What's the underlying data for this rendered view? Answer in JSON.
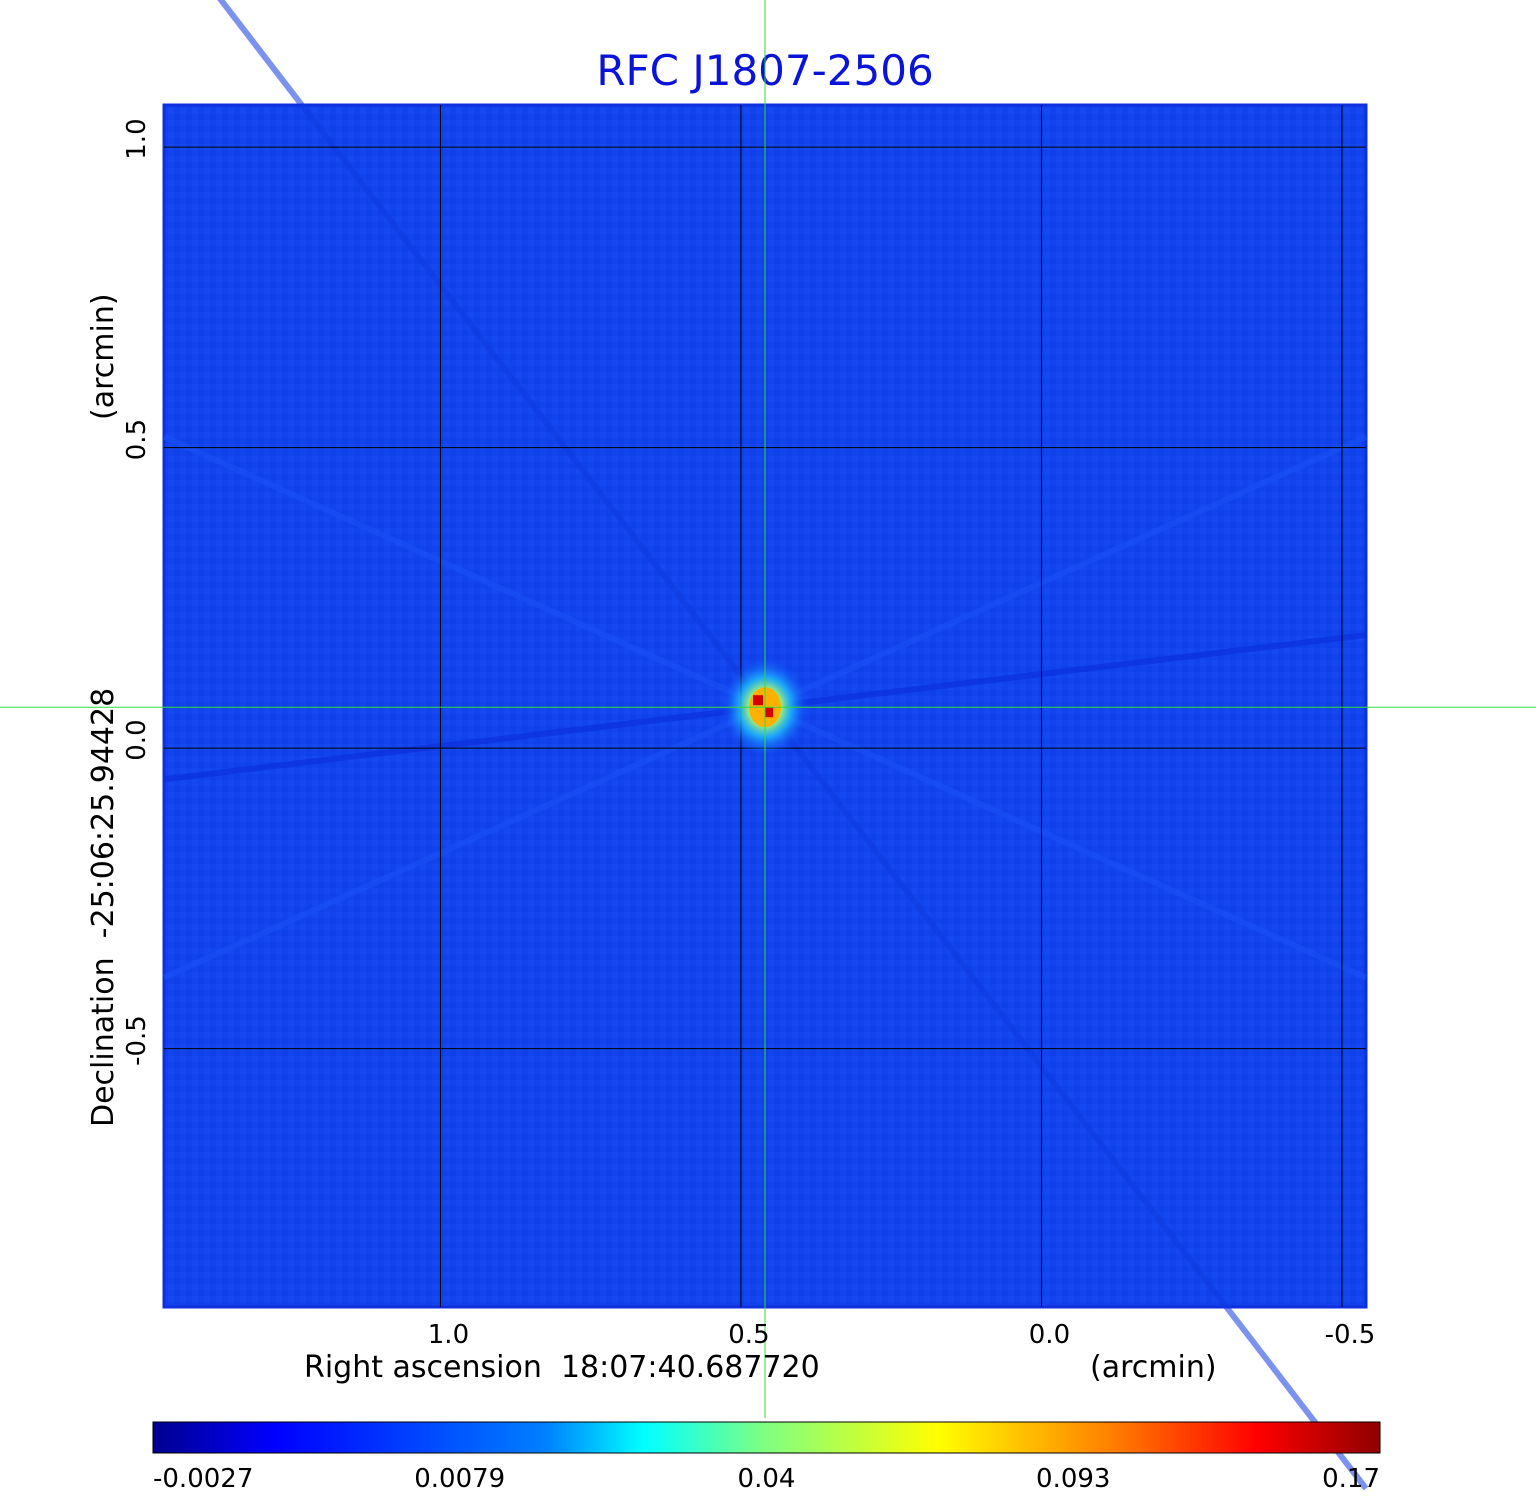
{
  "chart_data": {
    "type": "heatmap",
    "title": "RFC J1807-2506",
    "title_color": "#0a14d8",
    "xlabel": "Right ascension  18:07:40.687720",
    "xunit": "(arcmin)",
    "ylabel": "Declination  -25:06:25.94428",
    "yunit": "(arcmin)",
    "xlim": [
      1.46,
      -0.54
    ],
    "ylim": [
      -0.93,
      1.07
    ],
    "xticks": [
      {
        "value": 1.0,
        "label": "1.0"
      },
      {
        "value": 0.5,
        "label": "0.5"
      },
      {
        "value": 0.0,
        "label": "0.0"
      },
      {
        "value": -0.5,
        "label": "-0.5"
      }
    ],
    "yticks": [
      {
        "value": 1.0,
        "label": "1.0"
      },
      {
        "value": 0.5,
        "label": "0.5"
      },
      {
        "value": 0.0,
        "label": "0.0"
      },
      {
        "value": -0.5,
        "label": "-0.5"
      }
    ],
    "grid": true,
    "crosshair": {
      "x": 0.46,
      "y": 0.068,
      "color": "#33dd33"
    },
    "source": {
      "x": 0.46,
      "y": 0.068,
      "peak": 0.17
    },
    "colorbar": {
      "labels": [
        "-0.0027",
        "0.0079",
        "0.04",
        "0.093",
        "0.17"
      ],
      "colormap": "jet"
    }
  }
}
